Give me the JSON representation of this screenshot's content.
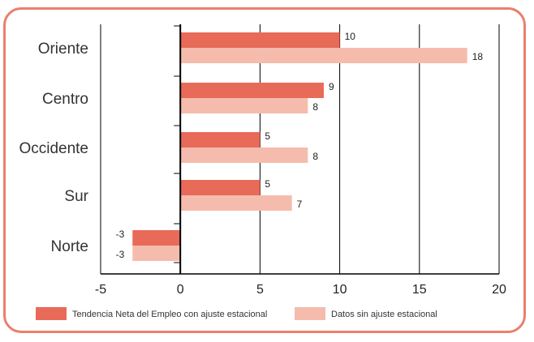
{
  "chart_data": {
    "type": "bar",
    "orientation": "horizontal",
    "categories": [
      "Oriente",
      "Centro",
      "Occidente",
      "Sur",
      "Norte"
    ],
    "series": [
      {
        "name": "Tendencia Neta del Empleo con ajuste estacional",
        "values": [
          10,
          9,
          5,
          5,
          -3
        ],
        "color": "#e86a58"
      },
      {
        "name": "Datos sin ajuste estacional",
        "values": [
          18,
          8,
          8,
          7,
          -3
        ],
        "color": "#f5bcad"
      }
    ],
    "xlim": [
      -5,
      20
    ],
    "xticks": [
      "-5",
      "0",
      "5",
      "10",
      "15",
      "20"
    ],
    "grid": "vertical",
    "legend_position": "bottom",
    "title": "",
    "xlabel": "",
    "ylabel": ""
  }
}
